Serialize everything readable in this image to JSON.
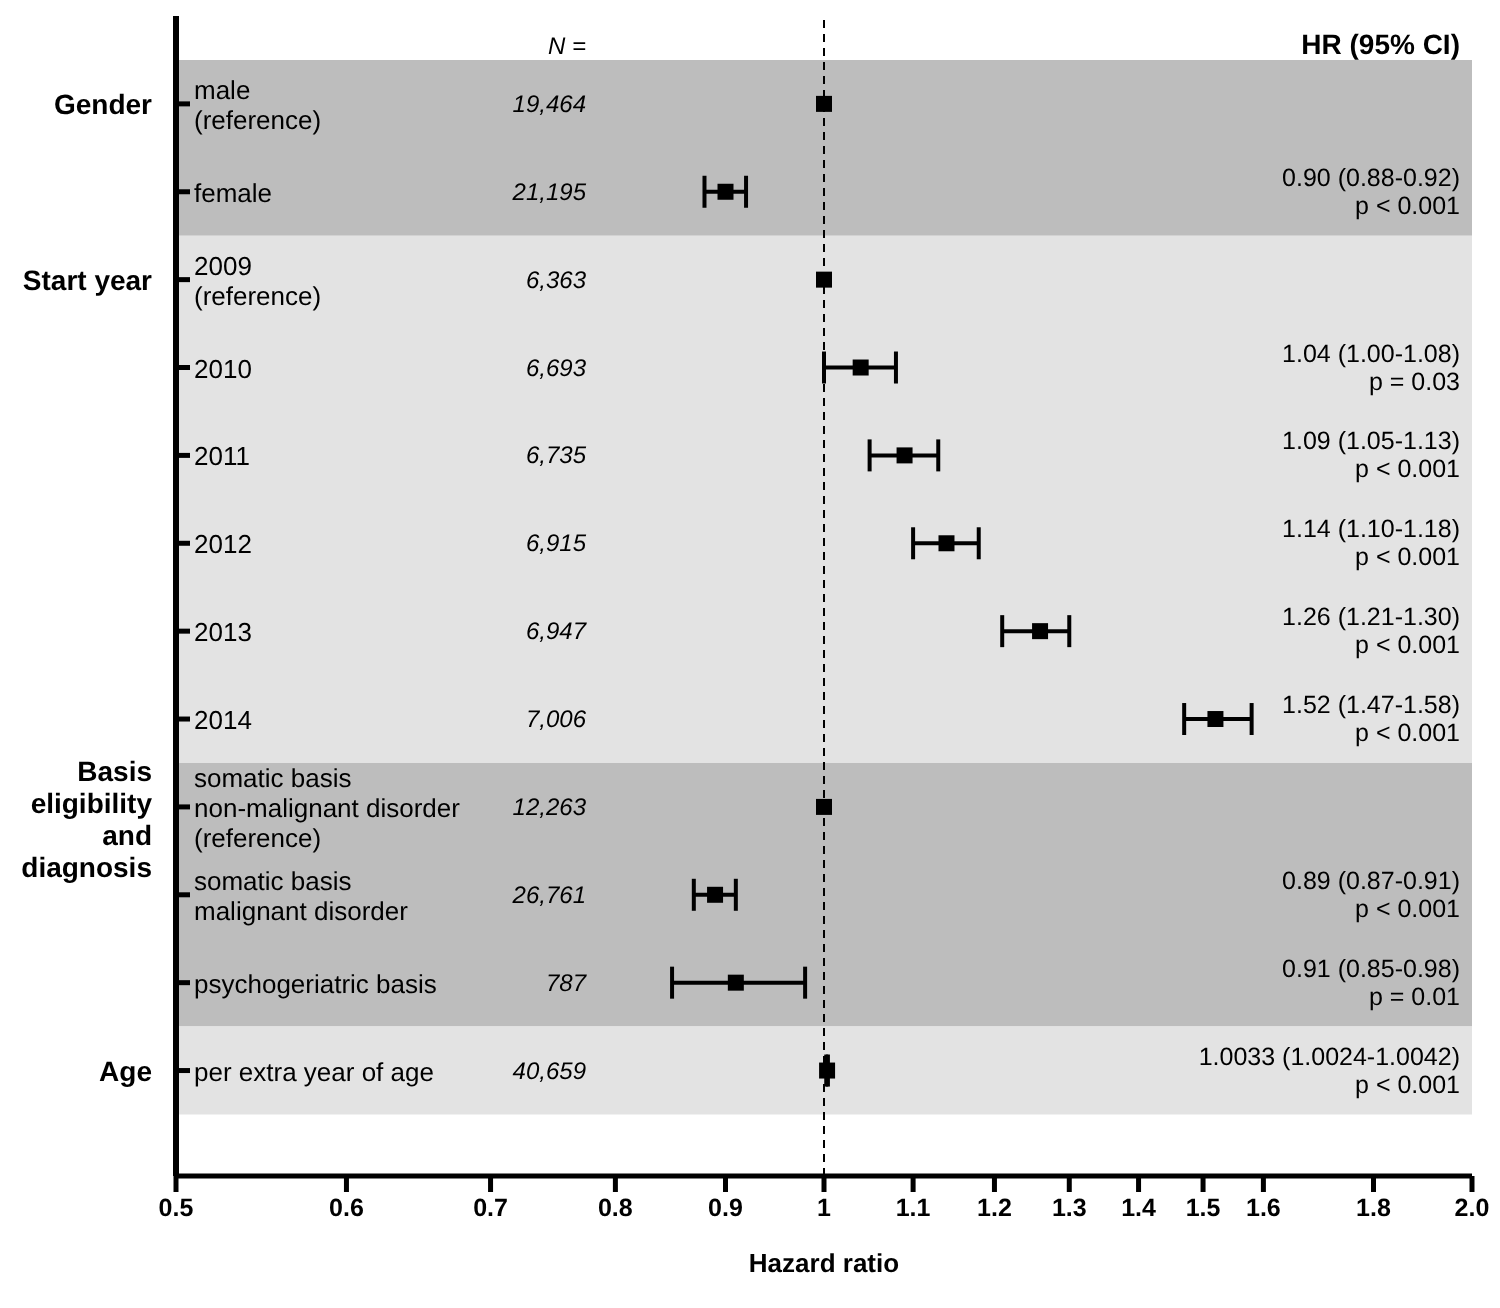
{
  "chart_data": {
    "type": "scatter",
    "orientation": "horizontal",
    "xlabel": "Hazard ratio",
    "categories": [
      "male\n(reference)",
      "female",
      "2009\n(reference)",
      "2010",
      "2011",
      "2012",
      "2013",
      "2014",
      "somatic basis\nnon-malignant disorder\n(reference)",
      "somatic basis\nmalignant disorder",
      "psychogeriatric basis",
      "per extra year of age"
    ],
    "series": [
      {
        "color": "#000000",
        "values": [
          1,
          0.9,
          1,
          1.04,
          1.09,
          1.14,
          1.26,
          1.52,
          1,
          0.89,
          0.91,
          1.0033
        ],
        "errors": [
          null,
          [
            0.88,
            0.92
          ],
          null,
          [
            1.0,
            1.08
          ],
          [
            1.05,
            1.13
          ],
          [
            1.1,
            1.18
          ],
          [
            1.21,
            1.3
          ],
          [
            1.47,
            1.58
          ],
          null,
          [
            0.87,
            0.91
          ],
          [
            0.85,
            0.98
          ],
          [
            1.0024,
            1.0042
          ]
        ]
      }
    ],
    "marker": "square",
    "log": "x",
    "xlim": [
      0.5,
      2.0
    ],
    "xticks": [
      0.5,
      0.6,
      0.7,
      0.8,
      0.9,
      1,
      1.1,
      1.2,
      1.3,
      1.4,
      1.5,
      1.6,
      1.8,
      {
        "value": 2,
        "label": "2.0"
      }
    ],
    "ref_lines": [
      {
        "axis": "x",
        "value": 1,
        "color": "#000000",
        "line_style": "dashed"
      }
    ],
    "bands": [
      {
        "axis": "y",
        "from": "male\n(reference)",
        "to": "female",
        "label": "Gender",
        "color": "#bdbdbd"
      },
      {
        "axis": "y",
        "from": "2009\n(reference)",
        "to": "2014",
        "label": "Start year",
        "color": "#e3e3e3"
      },
      {
        "axis": "y",
        "from": "somatic basis\nnon-malignant disorder\n(reference)",
        "to": "psychogeriatric basis",
        "label": "Basis\neligibility\nand\ndiagnosis",
        "color": "#bdbdbd"
      },
      {
        "axis": "y",
        "from": "per extra year of age",
        "to": "per extra year of age",
        "label": "Age",
        "color": "#e3e3e3"
      }
    ],
    "annotations": [
      "N =",
      "HR (95% CI)",
      "19,464",
      "21,195",
      "6,363",
      "6,693",
      "6,735",
      "6,915",
      "6,947",
      "7,006",
      "12,263",
      "26,761",
      "787",
      "40,659",
      "0.90 (0.88-0.92)\np < 0.001",
      "1.04 (1.00-1.08)\np = 0.03",
      "1.09 (1.05-1.13)\np < 0.001",
      "1.14 (1.10-1.18)\np < 0.001",
      "1.26 (1.21-1.30)\np < 0.001",
      "1.52 (1.47-1.58)\np < 0.001",
      "0.89 (0.87-0.91)\np < 0.001",
      "0.91 (0.85-0.98)\np = 0.01",
      "1.0033 (1.0024-1.0042)\np < 0.001"
    ]
  }
}
